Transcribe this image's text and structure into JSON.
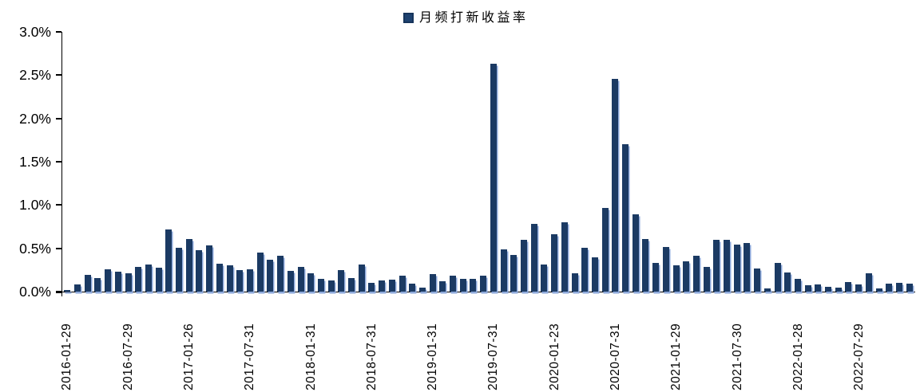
{
  "chart_data": {
    "type": "bar",
    "title": "",
    "legend": {
      "series_label": "月频打新收益率",
      "position": "top-center"
    },
    "ylabel": "",
    "xlabel": "",
    "ylim": [
      0,
      3.0
    ],
    "y_tick_labels": [
      "0.0%",
      "0.5%",
      "1.0%",
      "1.5%",
      "2.0%",
      "2.5%",
      "3.0%"
    ],
    "grid": false,
    "x_tick_every": 6,
    "x_tick_labels": [
      "2016-01-29",
      "2016-07-29",
      "2017-01-26",
      "2017-07-31",
      "2018-01-31",
      "2018-07-31",
      "2019-01-31",
      "2019-07-31",
      "2020-01-23",
      "2020-07-31",
      "2021-01-29",
      "2021-07-30",
      "2022-01-28",
      "2022-07-29"
    ],
    "n_bars": 84,
    "values": [
      0.02,
      0.08,
      0.19,
      0.16,
      0.26,
      0.23,
      0.21,
      0.29,
      0.31,
      0.28,
      0.72,
      0.51,
      0.61,
      0.48,
      0.53,
      0.32,
      0.3,
      0.25,
      0.26,
      0.45,
      0.37,
      0.41,
      0.24,
      0.29,
      0.21,
      0.15,
      0.13,
      0.25,
      0.16,
      0.31,
      0.1,
      0.13,
      0.14,
      0.18,
      0.09,
      0.05,
      0.2,
      0.12,
      0.18,
      0.15,
      0.15,
      0.18,
      2.63,
      0.49,
      0.42,
      0.6,
      0.78,
      0.31,
      0.66,
      0.8,
      0.21,
      0.51,
      0.4,
      0.97,
      2.46,
      1.7,
      0.89,
      0.61,
      0.33,
      0.52,
      0.3,
      0.35,
      0.41,
      0.29,
      0.6,
      0.6,
      0.54,
      0.56,
      0.27,
      0.04,
      0.33,
      0.22,
      0.15,
      0.07,
      0.08,
      0.06,
      0.05,
      0.11,
      0.08,
      0.21,
      0.04,
      0.09,
      0.1,
      0.09
    ],
    "colors": {
      "bar": "#1b3a63",
      "bar_shadow": "#8ea9db",
      "axis": "#000000",
      "text": "#000000",
      "background": "#ffffff"
    }
  }
}
